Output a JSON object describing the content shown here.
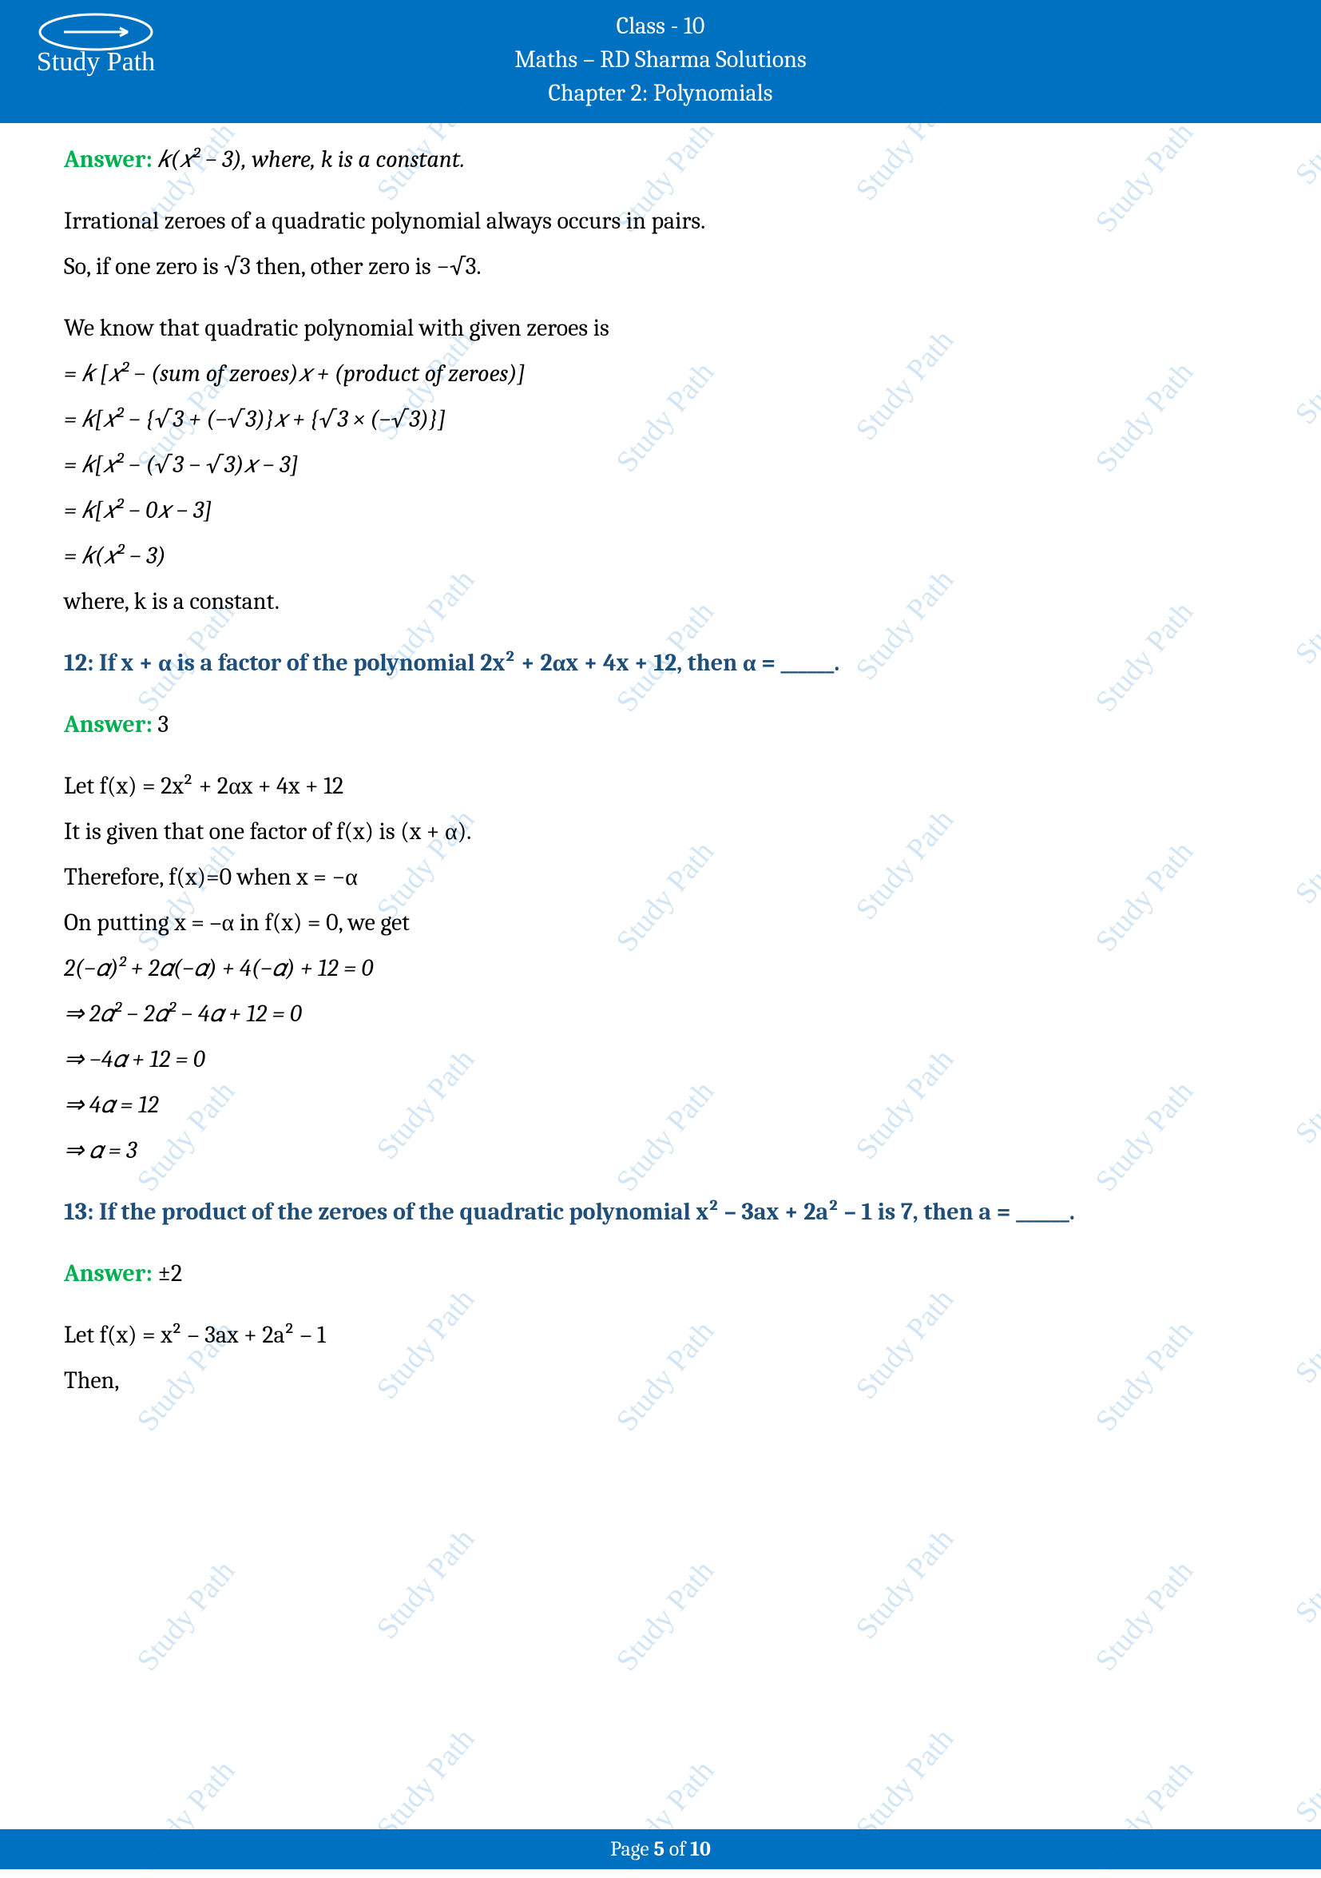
{
  "header": {
    "line1": "Class - 10",
    "line2": "Maths – RD Sharma Solutions",
    "line3": "Chapter 2: Polynomials",
    "logo_text": "Study Path",
    "brand_color": "#0070c0"
  },
  "watermark": {
    "text": "Study Path",
    "color": "rgba(0,112,192,0.18)",
    "angle_deg": -50,
    "font_family": "Brush Script MT"
  },
  "q11": {
    "answer_label": "Answer:",
    "answer_expr": "𝑘(𝑥² − 3), where, k is a constant.",
    "line1": "Irrational zeroes of a quadratic polynomial always occurs in pairs.",
    "line2": "So, if one zero is √3 then, other zero is −√3.",
    "line3": "We know that quadratic polynomial with given zeroes is",
    "step1": "= 𝑘 [𝑥² − (sum of zeroes)𝑥 + (product of zeroes)]",
    "step2": "= 𝑘[𝑥² − {√3 + (−√3)}𝑥 + {√3 × (−√3)}]",
    "step3": "= 𝑘[𝑥² − (√3 − √3)𝑥 − 3]",
    "step4": "= 𝑘[𝑥² − 0𝑥 − 3]",
    "step5": "= 𝑘(𝑥² − 3)",
    "line4": "where, k is a constant."
  },
  "q12": {
    "question": "12: If x + α is a factor of the polynomial 2x² + 2αx + 4x + 12, then α = ______.",
    "answer_label": "Answer:",
    "answer_value": "3",
    "line1": "Let f(x) = 2x² + 2αx + 4x + 12",
    "line2": "It is given that one factor of f(x) is (x + α).",
    "line3": "Therefore, f(x)=0 when x = −α",
    "line4": "On putting x = –α in f(x) = 0, we get",
    "step1": "2(−𝛼)² + 2𝛼(−𝛼) + 4(−𝛼) + 12 = 0",
    "step2": "⇒ 2𝛼² − 2𝛼² − 4𝛼 + 12 = 0",
    "step3": "⇒ −4𝛼 + 12 = 0",
    "step4": "⇒ 4𝛼 = 12",
    "step5": "⇒ 𝛼 = 3"
  },
  "q13": {
    "question": "13: If the product of the zeroes of the quadratic polynomial x² – 3ax + 2a² – 1 is 7, then a = ______.",
    "answer_label": "Answer:",
    "answer_value": "±2",
    "line1": "Let f(x) = x² – 3ax + 2a² – 1",
    "line2": "Then,"
  },
  "footer": {
    "prefix": "Page ",
    "current": "5",
    "middle": " of ",
    "total": "10"
  },
  "colors": {
    "answer_green": "#00b050",
    "question_blue": "#1f4e79",
    "brand_blue": "#0070c0",
    "text": "#000000",
    "background": "#ffffff"
  },
  "typography": {
    "body_fontsize_pt": 22,
    "header_fontsize_pt": 22,
    "font_family": "Cambria"
  }
}
